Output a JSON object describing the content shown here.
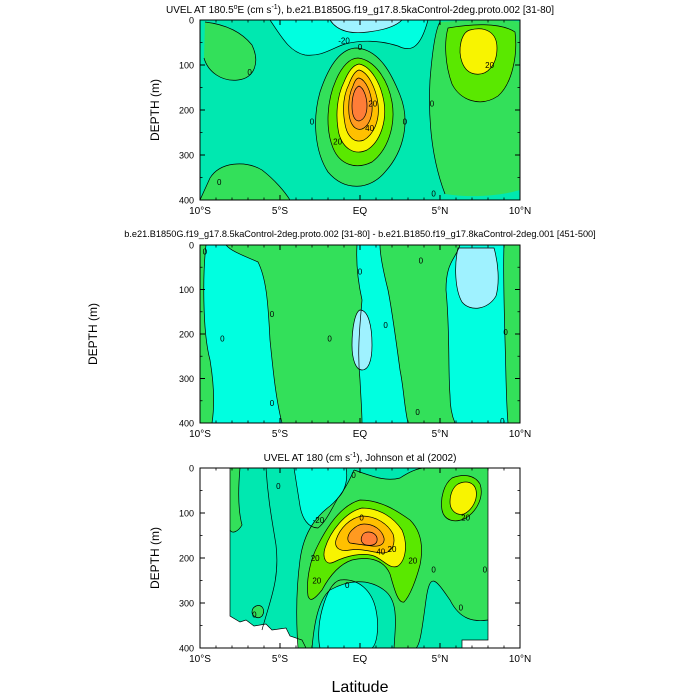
{
  "figure": {
    "xlabel": "Latitude"
  },
  "colors": {
    "cyan_light": "#9ff2ff",
    "cyan": "#00ffe0",
    "aquamarine": "#00e8b0",
    "green_light": "#33e05a",
    "green": "#39d63c",
    "lime": "#5ae800",
    "yellow": "#f8f400",
    "gold": "#ffc000",
    "orange": "#ff9a20",
    "orange_dark": "#ff7d38",
    "contour": "#000000"
  },
  "chart_data": [
    {
      "type": "heatmap",
      "panel": "top",
      "title_parts": [
        "UVEL AT 180.5",
        "o",
        "E (cm s",
        "-1",
        "), b.e21.B1850G.f19_g17.8.5kaControl-2deg.proto.002 [31-80]"
      ],
      "ylabel": "DEPTH (m)",
      "x_ticks": [
        "10°S",
        "5°S",
        "EQ",
        "5°N",
        "10°N"
      ],
      "x_tick_values": [
        -10,
        -5,
        0,
        5,
        10
      ],
      "y_ticks": [
        "0",
        "100",
        "200",
        "300",
        "400"
      ],
      "y_tick_values": [
        0,
        100,
        200,
        300,
        400
      ],
      "xlim": [
        -10,
        10
      ],
      "ylim": [
        400,
        0
      ],
      "contour_labels": [
        {
          "text": "-20",
          "x": -1.0,
          "y": 45
        },
        {
          "text": "0",
          "x": -6.9,
          "y": 115
        },
        {
          "text": "0",
          "x": 0.0,
          "y": 60
        },
        {
          "text": "0",
          "x": -3.0,
          "y": 225
        },
        {
          "text": "0",
          "x": 2.8,
          "y": 225
        },
        {
          "text": "0",
          "x": 4.5,
          "y": 185
        },
        {
          "text": "0",
          "x": 4.6,
          "y": 385
        },
        {
          "text": "0",
          "x": -8.8,
          "y": 360
        },
        {
          "text": "20",
          "x": -1.4,
          "y": 270
        },
        {
          "text": "20",
          "x": 0.8,
          "y": 185
        },
        {
          "text": "40",
          "x": 0.6,
          "y": 240
        },
        {
          "text": "20",
          "x": 8.1,
          "y": 100
        }
      ]
    },
    {
      "type": "heatmap",
      "panel": "middle",
      "title": "b.e21.B1850G.f19_g17.8.5kaControl-2deg.proto.002 [31-80] - b.e21.B1850.f19_g17.8kaControl-2deg.001 [451-500]",
      "ylabel": "DEPTH (m)",
      "x_ticks": [
        "10°S",
        "5°S",
        "EQ",
        "5°N",
        "10°N"
      ],
      "x_tick_values": [
        -10,
        -5,
        0,
        5,
        10
      ],
      "y_ticks": [
        "0",
        "100",
        "200",
        "300",
        "400"
      ],
      "y_tick_values": [
        0,
        100,
        200,
        300,
        400
      ],
      "xlim": [
        -10,
        10
      ],
      "ylim": [
        400,
        0
      ],
      "contour_labels": [
        {
          "text": "0",
          "x": -9.7,
          "y": 15
        },
        {
          "text": "0",
          "x": -8.6,
          "y": 210
        },
        {
          "text": "0",
          "x": -5.5,
          "y": 155
        },
        {
          "text": "0",
          "x": -5.5,
          "y": 355
        },
        {
          "text": "0",
          "x": -1.9,
          "y": 210
        },
        {
          "text": "0",
          "x": 0.0,
          "y": 60
        },
        {
          "text": "0",
          "x": 1.6,
          "y": 180
        },
        {
          "text": "0",
          "x": 3.6,
          "y": 375
        },
        {
          "text": "0",
          "x": 3.8,
          "y": 35
        },
        {
          "text": "0",
          "x": 9.1,
          "y": 195
        },
        {
          "text": "0",
          "x": 8.9,
          "y": 395
        }
      ]
    },
    {
      "type": "heatmap",
      "panel": "bottom",
      "title_parts": [
        "UVEL AT 180 (cm s",
        "-1",
        "), Johnson et al (2002)"
      ],
      "ylabel": "DEPTH (m)",
      "x_ticks": [
        "10°S",
        "5°S",
        "EQ",
        "5°N",
        "10°N"
      ],
      "x_tick_values": [
        -10,
        -5,
        0,
        5,
        10
      ],
      "y_ticks": [
        "0",
        "100",
        "200",
        "300",
        "400"
      ],
      "y_tick_values": [
        0,
        100,
        200,
        300,
        400
      ],
      "xlim": [
        -10,
        10
      ],
      "ylim": [
        400,
        0
      ],
      "contour_labels": [
        {
          "text": "0",
          "x": -5.1,
          "y": 40
        },
        {
          "text": "-20",
          "x": -2.6,
          "y": 115
        },
        {
          "text": "0",
          "x": -0.4,
          "y": 15
        },
        {
          "text": "0",
          "x": 0.1,
          "y": 110
        },
        {
          "text": "20",
          "x": -2.8,
          "y": 200
        },
        {
          "text": "20",
          "x": -2.7,
          "y": 250
        },
        {
          "text": "40",
          "x": 1.3,
          "y": 185
        },
        {
          "text": "20",
          "x": 2.0,
          "y": 180
        },
        {
          "text": "20",
          "x": 3.3,
          "y": 205
        },
        {
          "text": "0",
          "x": -0.8,
          "y": 260
        },
        {
          "text": "0",
          "x": 4.6,
          "y": 225
        },
        {
          "text": "0",
          "x": 6.3,
          "y": 310
        },
        {
          "text": "0",
          "x": 7.8,
          "y": 225
        },
        {
          "text": "20",
          "x": 6.6,
          "y": 110
        },
        {
          "text": "0",
          "x": -6.6,
          "y": 325
        }
      ]
    }
  ]
}
